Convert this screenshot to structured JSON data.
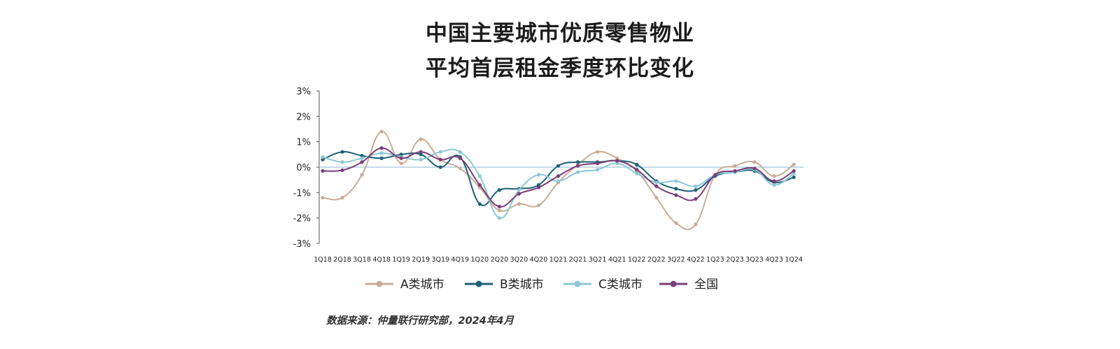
{
  "title_line1": "中国主要城市优质零售物业",
  "title_line2": "平均首层租金季度环比变化",
  "source": "数据来源：仲量联行研究部，2024年4月",
  "chart_data": {
    "type": "line",
    "categories": [
      "1Q18",
      "2Q18",
      "3Q18",
      "4Q18",
      "1Q19",
      "2Q19",
      "3Q19",
      "4Q19",
      "1Q20",
      "2Q20",
      "3Q20",
      "4Q20",
      "1Q21",
      "2Q21",
      "3Q21",
      "4Q21",
      "1Q22",
      "2Q22",
      "3Q22",
      "4Q22",
      "1Q23",
      "2Q23",
      "3Q23",
      "4Q23",
      "1Q24"
    ],
    "y_ticks": [
      "3%",
      "2%",
      "1%",
      "0%",
      "-1%",
      "-2%",
      "-3%"
    ],
    "ylim": [
      -3,
      3
    ],
    "zero_line": true,
    "legend_position": "bottom",
    "series": [
      {
        "name": "A类城市",
        "color": "#c9ad97",
        "values": [
          -1.2,
          -1.2,
          -0.3,
          1.4,
          0.15,
          1.1,
          0.3,
          -0.05,
          -0.8,
          -1.7,
          -1.45,
          -1.5,
          -0.6,
          0.1,
          0.6,
          0.35,
          -0.15,
          -1.2,
          -2.2,
          -2.25,
          -0.3,
          0.05,
          0.2,
          -0.35,
          0.1
        ]
      },
      {
        "name": "B类城市",
        "color": "#1e6178",
        "values": [
          0.3,
          0.6,
          0.45,
          0.35,
          0.5,
          0.5,
          0.0,
          0.4,
          -1.45,
          -0.9,
          -0.85,
          -0.7,
          0.05,
          0.2,
          0.2,
          0.25,
          0.1,
          -0.55,
          -0.85,
          -0.9,
          -0.35,
          -0.2,
          -0.15,
          -0.6,
          -0.4
        ]
      },
      {
        "name": "C类城市",
        "color": "#8cc8d6",
        "values": [
          0.4,
          0.2,
          0.35,
          0.55,
          0.4,
          0.3,
          0.6,
          0.6,
          -0.35,
          -2.0,
          -0.9,
          -0.3,
          -0.55,
          -0.2,
          -0.1,
          0.15,
          -0.25,
          -0.6,
          -0.55,
          -0.75,
          -0.3,
          -0.2,
          -0.1,
          -0.7,
          -0.25
        ]
      },
      {
        "name": "全国",
        "color": "#7a3e79",
        "values": [
          -0.15,
          -0.12,
          0.2,
          0.75,
          0.35,
          0.6,
          0.3,
          0.35,
          -0.7,
          -1.55,
          -1.05,
          -0.8,
          -0.35,
          0.05,
          0.15,
          0.25,
          -0.1,
          -0.75,
          -1.1,
          -1.25,
          -0.3,
          -0.15,
          -0.05,
          -0.55,
          -0.15
        ]
      }
    ]
  }
}
